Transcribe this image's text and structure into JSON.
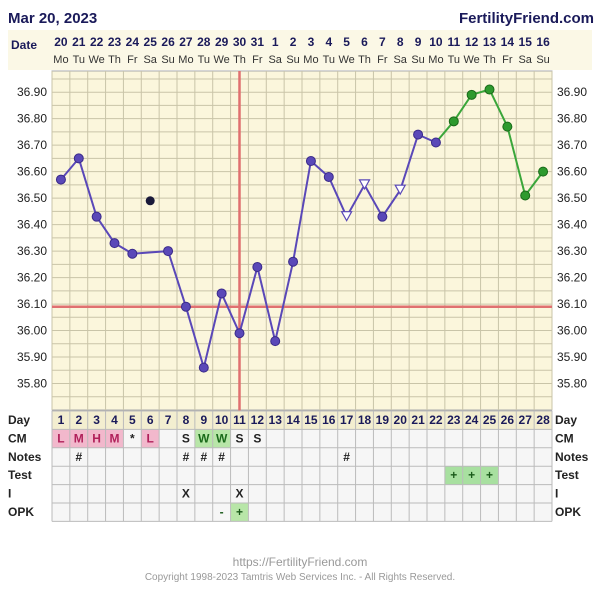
{
  "header": {
    "date": "Mar 20, 2023",
    "brand": "FertilityFriend.com"
  },
  "footer": {
    "url": "https://FertilityFriend.com",
    "copyright": "Copyright 1998-2023 Tamtris Web Services Inc. - All Rights Reserved."
  },
  "row_labels": {
    "date": "Date",
    "day": "Day",
    "cm": "CM",
    "notes": "Notes",
    "test": "Test",
    "i": "I",
    "opk": "OPK"
  },
  "colors": {
    "paper": "#fbf6dc",
    "grid": "#c9c4a8",
    "line_pre": "#5a48b8",
    "line_post": "#3aa63a",
    "coverline": "#e07070",
    "ovulation": "#e07070",
    "cm_pink": "#f2b8cc",
    "cm_green": "#b8e6a8",
    "test_green": "#a8e0a0"
  },
  "chart_data": {
    "type": "line",
    "title": "",
    "ylabel": "",
    "ylim": [
      35.7,
      36.98
    ],
    "yticks": [
      35.8,
      35.9,
      36.0,
      36.1,
      36.2,
      36.3,
      36.4,
      36.5,
      36.6,
      36.7,
      36.8,
      36.9
    ],
    "ytick_labels": [
      "35.80",
      "35.90",
      "36.00",
      "36.10",
      "36.20",
      "36.30",
      "36.40",
      "36.50",
      "36.60",
      "36.70",
      "36.80",
      "36.90"
    ],
    "cycle_days": [
      "1",
      "2",
      "3",
      "4",
      "5",
      "6",
      "7",
      "8",
      "9",
      "10",
      "11",
      "12",
      "13",
      "14",
      "15",
      "16",
      "17",
      "18",
      "19",
      "20",
      "21",
      "22",
      "23",
      "24",
      "25",
      "26",
      "27",
      "28"
    ],
    "dates": [
      "20",
      "21",
      "22",
      "23",
      "24",
      "25",
      "26",
      "27",
      "28",
      "29",
      "30",
      "31",
      "1",
      "2",
      "3",
      "4",
      "5",
      "6",
      "7",
      "8",
      "9",
      "10",
      "11",
      "12",
      "13",
      "14",
      "15",
      "16"
    ],
    "weekdays": [
      "Mo",
      "Tu",
      "We",
      "Th",
      "Fr",
      "Sa",
      "Su",
      "Mo",
      "Tu",
      "We",
      "Th",
      "Fr",
      "Sa",
      "Su",
      "Mo",
      "Tu",
      "We",
      "Th",
      "Fr",
      "Sa",
      "Su",
      "Mo",
      "Tu",
      "We",
      "Th",
      "Fr",
      "Sa",
      "Su"
    ],
    "temps": [
      36.57,
      36.65,
      36.43,
      36.33,
      36.29,
      null,
      36.3,
      36.09,
      35.86,
      36.14,
      35.99,
      36.24,
      35.96,
      36.26,
      36.64,
      36.58,
      36.43,
      36.55,
      36.43,
      36.53,
      36.74,
      36.71,
      36.79,
      36.89,
      36.91,
      36.77,
      36.51,
      36.6
    ],
    "markers": [
      "dot",
      "dot",
      "dot",
      "dot",
      "dot",
      "none",
      "dot",
      "dot",
      "dot",
      "dot",
      "dot",
      "dot",
      "dot",
      "dot",
      "dot",
      "dot",
      "open_tri",
      "open_tri",
      "dot",
      "open_tri",
      "dot",
      "dot",
      "gdot",
      "gdot",
      "gdot",
      "gdot",
      "gdot",
      "gdot"
    ],
    "discarded_point": {
      "day": 6,
      "temp": 36.49
    },
    "coverline": 36.09,
    "ovulation_day": 11,
    "post_ovulation_start_day": 22,
    "grid": true,
    "cm": [
      "L",
      "M",
      "H",
      "M",
      "*",
      "L",
      "",
      "S",
      "W",
      "W",
      "S",
      "S",
      "",
      "",
      "",
      "",
      "",
      "",
      "",
      "",
      "",
      "",
      "",
      "",
      "",
      "",
      "",
      ""
    ],
    "cm_colors": [
      "pink",
      "pink",
      "pink",
      "pink",
      "none",
      "pink",
      "none",
      "none",
      "green",
      "green",
      "none",
      "none",
      "none",
      "none",
      "none",
      "none",
      "none",
      "none",
      "none",
      "none",
      "none",
      "none",
      "none",
      "none",
      "none",
      "none",
      "none",
      "none"
    ],
    "notes": [
      "",
      "#",
      "",
      "",
      "",
      "",
      "",
      "#",
      "#",
      "#",
      "",
      "",
      "",
      "",
      "",
      "",
      "#",
      "",
      "",
      "",
      "",
      "",
      "",
      "",
      "",
      "",
      "",
      ""
    ],
    "test": [
      "",
      "",
      "",
      "",
      "",
      "",
      "",
      "",
      "",
      "",
      "",
      "",
      "",
      "",
      "",
      "",
      "",
      "",
      "",
      "",
      "",
      "",
      "+",
      "+",
      "+",
      "",
      "",
      ""
    ],
    "intercourse": [
      "",
      "",
      "",
      "",
      "",
      "",
      "",
      "X",
      "",
      "",
      "X",
      "",
      "",
      "",
      "",
      "",
      "",
      "",
      "",
      "",
      "",
      "",
      "",
      "",
      "",
      "",
      "",
      ""
    ],
    "opk": [
      "",
      "",
      "",
      "",
      "",
      "",
      "",
      "",
      "",
      "-",
      "+",
      "",
      "",
      "",
      "",
      "",
      "",
      "",
      "",
      "",
      "",
      "",
      "",
      "",
      "",
      "",
      "",
      ""
    ],
    "opk_colors": [
      "none",
      "none",
      "none",
      "none",
      "none",
      "none",
      "none",
      "none",
      "none",
      "none",
      "green",
      "none",
      "none",
      "none",
      "none",
      "none",
      "none",
      "none",
      "none",
      "none",
      "none",
      "none",
      "none",
      "none",
      "none",
      "none",
      "none",
      "none"
    ]
  }
}
